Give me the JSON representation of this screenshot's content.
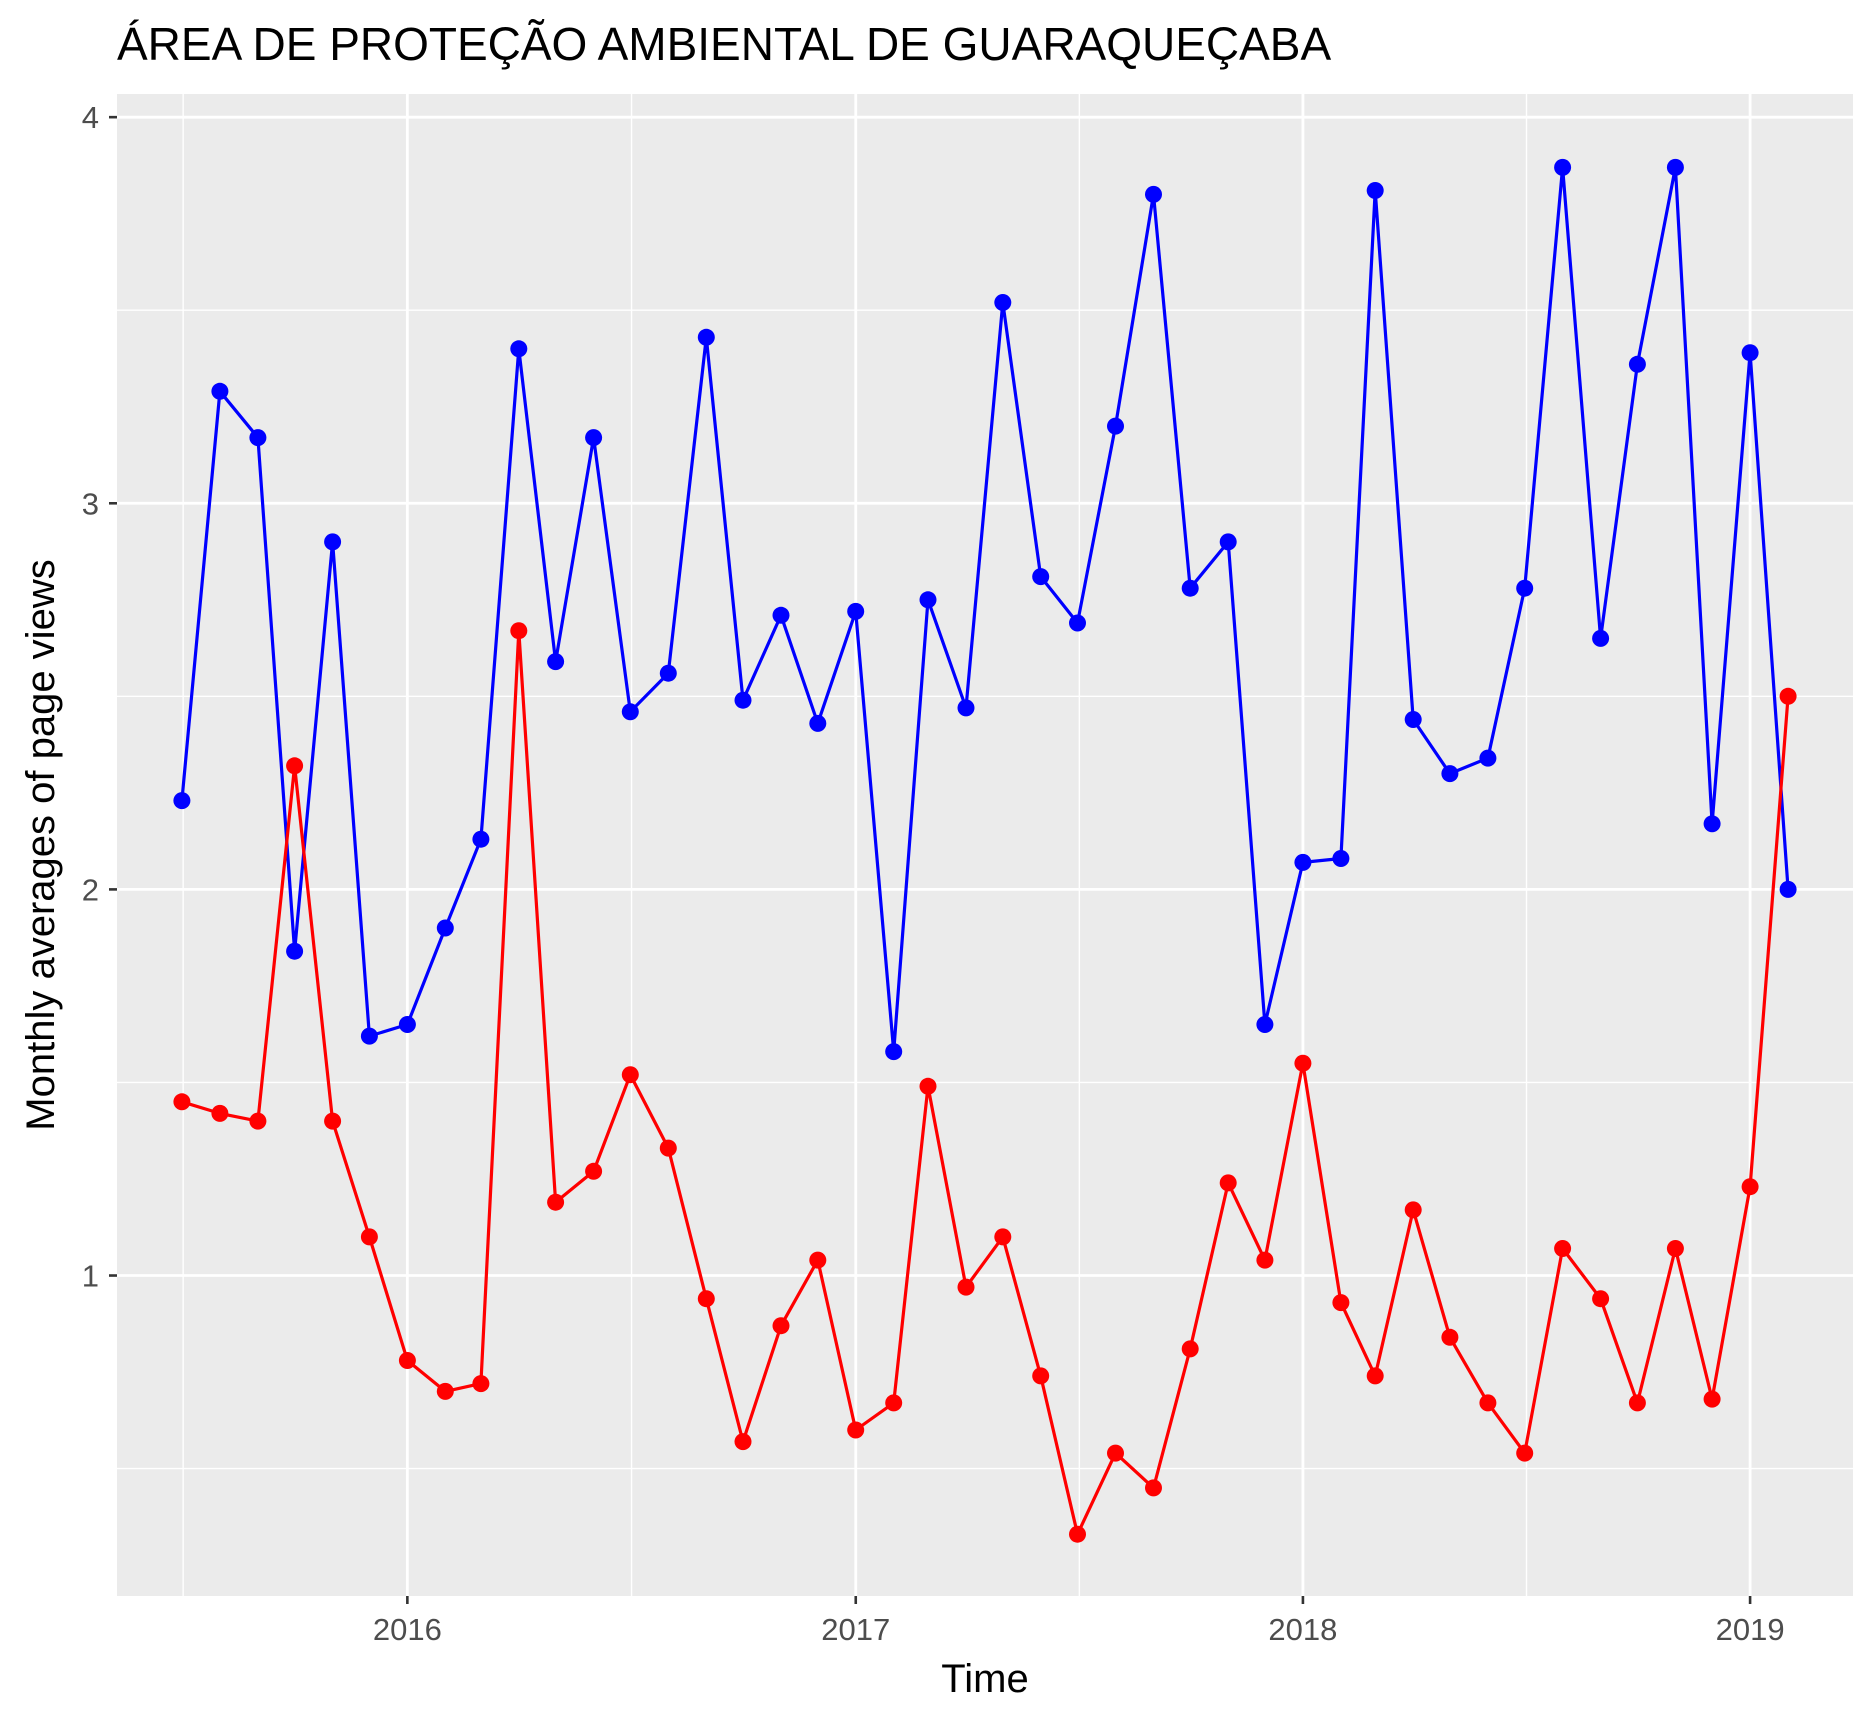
{
  "chart_data": {
    "type": "line",
    "title": "ÁREA DE PROTEÇÃO AMBIENTAL DE GUARAQUEÇABA",
    "xlabel": "Time",
    "ylabel": "Monthly averages of page views",
    "x_tick_labels": [
      "2016",
      "2017",
      "2018",
      "2019"
    ],
    "y_tick_labels": [
      "1",
      "2",
      "3",
      "4"
    ],
    "x_ticks": [
      "2016-01",
      "2017-01",
      "2018-01",
      "2019-01"
    ],
    "y_ticks": [
      1,
      2,
      3,
      4
    ],
    "ylim": [
      0.17,
      4.06
    ],
    "xlim": [
      "2015-05-09",
      "2019-03-26"
    ],
    "grid": true,
    "legend": "none",
    "x": [
      "2015-07",
      "2015-08",
      "2015-09",
      "2015-10",
      "2015-11",
      "2015-12",
      "2016-01",
      "2016-02",
      "2016-03",
      "2016-04",
      "2016-05",
      "2016-06",
      "2016-07",
      "2016-08",
      "2016-09",
      "2016-10",
      "2016-11",
      "2016-12",
      "2017-01",
      "2017-02",
      "2017-03",
      "2017-04",
      "2017-05",
      "2017-06",
      "2017-07",
      "2017-08",
      "2017-09",
      "2017-10",
      "2017-11",
      "2017-12",
      "2018-01",
      "2018-02",
      "2018-03",
      "2018-04",
      "2018-05",
      "2018-06",
      "2018-07",
      "2018-08",
      "2018-09",
      "2018-10",
      "2018-11",
      "2018-12",
      "2019-01",
      "2019-02"
    ],
    "series": [
      {
        "color": "#0000ff",
        "values": [
          2.23,
          3.29,
          3.17,
          1.84,
          2.9,
          1.62,
          1.65,
          1.9,
          2.13,
          3.4,
          2.59,
          3.17,
          2.46,
          2.56,
          3.43,
          2.49,
          2.71,
          2.43,
          2.72,
          1.58,
          2.75,
          2.47,
          3.52,
          2.81,
          2.69,
          3.2,
          3.8,
          2.78,
          2.9,
          1.65,
          2.07,
          2.08,
          3.81,
          2.44,
          2.3,
          2.34,
          2.78,
          3.87,
          2.65,
          3.36,
          3.87,
          2.17,
          3.39,
          2.0
        ]
      },
      {
        "color": "#ff0000",
        "values": [
          1.45,
          1.42,
          1.4,
          2.32,
          1.4,
          1.1,
          0.78,
          0.7,
          0.72,
          2.67,
          1.19,
          1.27,
          1.52,
          1.33,
          0.94,
          0.57,
          0.87,
          1.04,
          0.6,
          0.67,
          1.49,
          0.97,
          1.1,
          0.74,
          0.33,
          0.54,
          0.45,
          0.81,
          1.24,
          1.04,
          1.55,
          0.93,
          0.74,
          1.17,
          0.84,
          0.67,
          0.54,
          1.07,
          0.94,
          0.67,
          1.07,
          0.68,
          1.23,
          2.5
        ]
      }
    ]
  }
}
